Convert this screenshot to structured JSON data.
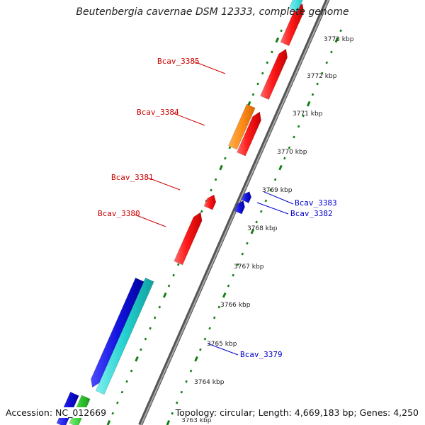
{
  "title": "Beutenbergia cavernae DSM 12333, complete genome",
  "accession": "Accession: NC_012669",
  "summary": "Topology: circular; Length: 4,669,183 bp; Genes: 4,250",
  "colors": {
    "strand_top_red": "#ff1a1a",
    "strand_top_orange": "#ff8c1a",
    "strand_bottom_blue": "#1414e0",
    "strand_cyan": "#25d0d0",
    "strand_green": "#33cc33",
    "label_red": "#cc0000",
    "label_blue": "#0000cc",
    "backbone": "#808080",
    "ticks": "#138013"
  },
  "kbp_ticks": [
    "3763 kbp",
    "3764 kbp",
    "3765 kbp",
    "3766 kbp",
    "3767 kbp",
    "3768 kbp",
    "3769 kbp",
    "3770 kbp",
    "3771 kbp",
    "3772 kbp",
    "3773 kbp"
  ],
  "genes_top_strand": [
    {
      "label": "Bcav_3385",
      "color": "red"
    },
    {
      "label": "Bcav_3384",
      "color": "orange"
    },
    {
      "label": "Bcav_3381",
      "color": "red"
    },
    {
      "label": "Bcav_3380",
      "color": "red"
    }
  ],
  "genes_bottom_strand": [
    {
      "label": "Bcav_3383",
      "color": "blue"
    },
    {
      "label": "Bcav_3382",
      "color": "blue"
    },
    {
      "label": "Bcav_3379",
      "color": "blue"
    }
  ]
}
